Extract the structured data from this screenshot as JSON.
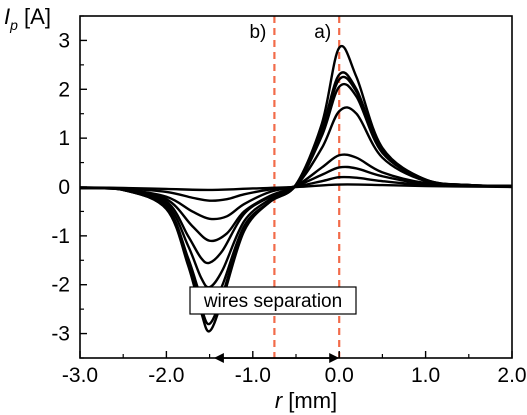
{
  "chart_data": {
    "type": "line",
    "xlabel": {
      "var": "r",
      "unit": " [mm]"
    },
    "ylabel": {
      "var": "I",
      "sub": "p",
      "unit": " [A]"
    },
    "xlim": [
      -3.0,
      2.0
    ],
    "ylim": [
      -3.5,
      3.5
    ],
    "x_ticks": [
      {
        "value": -3.0,
        "label": "-3.0"
      },
      {
        "value": -2.0,
        "label": "-2.0"
      },
      {
        "value": -1.0,
        "label": "-1.0"
      },
      {
        "value": 0.0,
        "label": "0.0"
      },
      {
        "value": 1.0,
        "label": "1.0"
      },
      {
        "value": 2.0,
        "label": "2.0"
      }
    ],
    "y_ticks": [
      {
        "value": 3,
        "label": "3"
      },
      {
        "value": 2,
        "label": "2"
      },
      {
        "value": 1,
        "label": "1"
      },
      {
        "value": 0,
        "label": "0"
      },
      {
        "value": -1,
        "label": "-1"
      },
      {
        "value": -2,
        "label": "-2"
      },
      {
        "value": -3,
        "label": "-3"
      }
    ],
    "grid": false,
    "legend": "none",
    "line_color": "#000000",
    "series": [
      {
        "x": [
          -3.0,
          -2.5,
          -2.0,
          -1.75,
          -1.6,
          -1.5,
          -1.35,
          -1.1,
          -0.8,
          -0.5,
          -0.2,
          0.0,
          0.2,
          0.5,
          1.0,
          1.5,
          2.0
        ],
        "y": [
          -0.02,
          -0.06,
          -0.45,
          -1.6,
          -2.55,
          -2.95,
          -2.3,
          -0.9,
          -0.3,
          0.05,
          1.3,
          2.85,
          2.25,
          0.8,
          0.15,
          0.04,
          0.02
        ]
      },
      {
        "x": [
          -3.0,
          -2.5,
          -2.0,
          -1.75,
          -1.6,
          -1.5,
          -1.35,
          -1.1,
          -0.8,
          -0.5,
          -0.2,
          0.0,
          0.2,
          0.5,
          1.0,
          1.5,
          2.0
        ],
        "y": [
          -0.02,
          -0.06,
          -0.45,
          -1.55,
          -2.45,
          -2.8,
          -2.2,
          -0.85,
          -0.3,
          0.05,
          1.2,
          2.3,
          2.0,
          0.75,
          0.15,
          0.04,
          0.02
        ]
      },
      {
        "x": [
          -3.0,
          -2.5,
          -2.0,
          -1.75,
          -1.6,
          -1.5,
          -1.35,
          -1.1,
          -0.8,
          -0.5,
          -0.2,
          0.0,
          0.2,
          0.5,
          1.0,
          1.5,
          2.0
        ],
        "y": [
          -0.02,
          -0.06,
          -0.4,
          -1.45,
          -2.25,
          -2.5,
          -2.0,
          -0.8,
          -0.3,
          0.04,
          1.15,
          2.2,
          1.95,
          0.72,
          0.15,
          0.04,
          0.02
        ]
      },
      {
        "x": [
          -3.0,
          -2.5,
          -2.0,
          -1.75,
          -1.6,
          -1.5,
          -1.35,
          -1.1,
          -0.8,
          -0.5,
          -0.2,
          0.0,
          0.2,
          0.5,
          1.0,
          1.5,
          2.0
        ],
        "y": [
          -0.02,
          -0.05,
          -0.35,
          -1.2,
          -1.85,
          -2.05,
          -1.7,
          -0.7,
          -0.25,
          0.03,
          1.05,
          2.05,
          1.85,
          0.7,
          0.14,
          0.04,
          0.02
        ]
      },
      {
        "x": [
          -3.0,
          -2.5,
          -2.0,
          -1.75,
          -1.6,
          -1.5,
          -1.35,
          -1.1,
          -0.8,
          -0.5,
          -0.2,
          0.0,
          0.2,
          0.5,
          1.0,
          1.5,
          2.0
        ],
        "y": [
          -0.02,
          -0.05,
          -0.3,
          -1.0,
          -1.45,
          -1.55,
          -1.3,
          -0.55,
          -0.2,
          0.03,
          0.8,
          1.55,
          1.5,
          0.6,
          0.12,
          0.04,
          0.02
        ]
      },
      {
        "x": [
          -3.0,
          -2.5,
          -2.0,
          -1.7,
          -1.5,
          -1.3,
          -1.1,
          -0.8,
          -0.5,
          -0.2,
          0.0,
          0.2,
          0.5,
          1.0,
          1.5,
          2.0
        ],
        "y": [
          -0.02,
          -0.05,
          -0.25,
          -0.8,
          -1.1,
          -0.95,
          -0.5,
          -0.18,
          0.02,
          0.4,
          0.65,
          0.6,
          0.3,
          0.08,
          0.03,
          0.02
        ]
      },
      {
        "x": [
          -3.0,
          -2.5,
          -2.0,
          -1.7,
          -1.5,
          -1.3,
          -1.1,
          -0.8,
          -0.5,
          -0.2,
          0.0,
          0.2,
          0.5,
          1.0,
          1.5,
          2.0
        ],
        "y": [
          -0.02,
          -0.05,
          -0.2,
          -0.5,
          -0.65,
          -0.6,
          -0.35,
          -0.1,
          0.02,
          0.25,
          0.4,
          0.38,
          0.22,
          0.06,
          0.03,
          0.02
        ]
      },
      {
        "x": [
          -3.0,
          -2.5,
          -2.0,
          -1.7,
          -1.5,
          -1.3,
          -1.1,
          -0.8,
          -0.5,
          -0.2,
          0.0,
          0.2,
          0.5,
          1.0,
          1.5,
          2.0
        ],
        "y": [
          -0.01,
          -0.03,
          -0.1,
          -0.22,
          -0.28,
          -0.25,
          -0.15,
          -0.05,
          0.01,
          0.12,
          0.2,
          0.19,
          0.12,
          0.04,
          0.02,
          0.01
        ]
      },
      {
        "x": [
          -3.0,
          -2.5,
          -2.0,
          -1.5,
          -1.0,
          -0.5,
          0.0,
          0.5,
          1.0,
          1.5,
          2.0
        ],
        "y": [
          -0.01,
          -0.02,
          -0.04,
          -0.06,
          -0.03,
          0.0,
          0.05,
          0.04,
          0.02,
          0.01,
          0.0
        ]
      }
    ],
    "vlines": [
      {
        "x": -0.75,
        "label": "b)",
        "color": "#f26b4a"
      },
      {
        "x": 0.0,
        "label": "a)",
        "color": "#f26b4a"
      }
    ],
    "annotation": {
      "text": "wires separation",
      "x_from": -1.45,
      "x_to": 0.0,
      "y": -3.05
    }
  }
}
